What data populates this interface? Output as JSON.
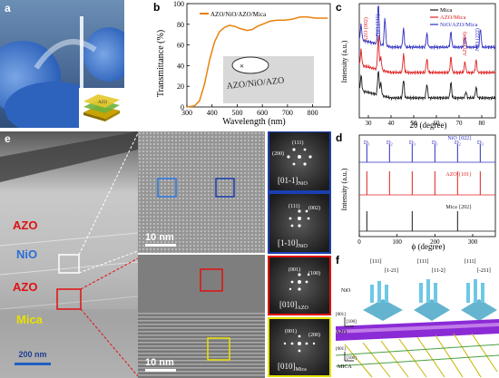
{
  "panels": {
    "a": {
      "label": "a",
      "film_label": "AZO"
    },
    "b": {
      "label": "b",
      "legend": "AZO/NiO/AZO/Mica",
      "xlabel": "Wavelength (nm)",
      "ylabel": "Transmittance (%)",
      "sample_text": "AZO/NiO/AZO"
    },
    "c": {
      "label": "c",
      "xlabel": "2θ (degree)",
      "ylabel": "Intensity (a.u.)",
      "legend": [
        "Mica",
        "AZO/Mica",
        "NiO/AZO/Mica"
      ],
      "annotations": [
        "AZO (002)",
        "NiO (111)",
        "AZO (004)",
        "NiO (222)"
      ]
    },
    "d": {
      "label": "d",
      "xlabel": "ϕ (degree)",
      "ylabel": "Intensity (a.u.)",
      "legend": [
        "NiO {022}",
        "AZO {101}",
        "Mica {202}"
      ],
      "peak_label": "D",
      "peak_subs": [
        "1",
        "2",
        "3",
        "1",
        "2",
        "3"
      ]
    },
    "e": {
      "label": "e",
      "layers": [
        "AZO",
        "NiO",
        "AZO",
        "Mica"
      ],
      "scale_main": "200 nm",
      "scale_hr1": "10 nm",
      "scale_hr2": "10 nm",
      "fft1": {
        "zone": "[01-1]",
        "sub": "NiO",
        "spots": [
          "(111)",
          "(200)"
        ]
      },
      "fft2": {
        "zone": "[1-10]",
        "sub": "NiO",
        "spots": [
          "(111)",
          "(002)"
        ]
      },
      "fft3": {
        "zone": "[010]",
        "sub": "AZO",
        "spots": [
          "(001)",
          "(100)"
        ]
      },
      "fft4": {
        "zone": "[010]",
        "sub": "Mica",
        "spots": [
          "(001)",
          "(200)"
        ]
      }
    },
    "f": {
      "label": "f",
      "top_dirs": [
        "[111]",
        "[1-21]",
        "[111]",
        "[11-2]",
        "[111]",
        "[-211]"
      ],
      "nio_label": "NiO",
      "azo_axes": [
        "[001]",
        "[100]",
        "AZO"
      ],
      "mica_axes": [
        "[001]",
        "[100]",
        "MICA"
      ]
    }
  },
  "chart_data": [
    {
      "type": "line",
      "panel": "b",
      "xlabel": "Wavelength (nm)",
      "ylabel": "Transmittance (%)",
      "xlim": [
        300,
        870
      ],
      "ylim": [
        0,
        100
      ],
      "xticks": [
        300,
        400,
        500,
        600,
        700,
        800
      ],
      "yticks": [
        0,
        20,
        40,
        60,
        80,
        100
      ],
      "series": [
        {
          "name": "AZO/NiO/AZO/Mica",
          "color": "#e8820c",
          "x": [
            300,
            330,
            350,
            370,
            390,
            410,
            430,
            450,
            470,
            490,
            510,
            540,
            560,
            580,
            600,
            630,
            660,
            690,
            720,
            750,
            780,
            810,
            840,
            860
          ],
          "y": [
            0,
            1,
            6,
            22,
            45,
            63,
            73,
            77,
            79,
            78,
            76,
            74,
            75,
            78,
            80,
            83,
            84,
            84,
            85,
            87,
            87,
            86,
            86,
            86
          ]
        }
      ]
    },
    {
      "type": "line",
      "panel": "c",
      "xlabel": "2θ (degree)",
      "ylabel": "Intensity (a.u.)",
      "xlim": [
        26,
        86
      ],
      "xticks": [
        30,
        40,
        50,
        60,
        70,
        80
      ],
      "series": [
        {
          "name": "Mica",
          "color": "#1a1a1a",
          "offset": 0,
          "peaks": [
            [
              26.8,
              0.5
            ],
            [
              34.4,
              0.8
            ],
            [
              35.5,
              0.4
            ],
            [
              45.5,
              0.6
            ],
            [
              55.8,
              0.45
            ],
            [
              66.4,
              0.5
            ],
            [
              73.0,
              0.2
            ],
            [
              77.5,
              0.35
            ]
          ]
        },
        {
          "name": "AZO/Mica",
          "color": "#e02020",
          "offset": 1,
          "peaks": [
            [
              26.8,
              0.5
            ],
            [
              34.4,
              1.1
            ],
            [
              35.5,
              0.4
            ],
            [
              45.5,
              0.6
            ],
            [
              55.8,
              0.45
            ],
            [
              66.4,
              0.5
            ],
            [
              72.6,
              0.35
            ],
            [
              77.5,
              0.4
            ]
          ]
        },
        {
          "name": "NiO/AZO/Mica",
          "color": "#3030c0",
          "offset": 2,
          "peaks": [
            [
              26.8,
              0.5
            ],
            [
              34.4,
              1.3
            ],
            [
              37.3,
              0.9
            ],
            [
              45.5,
              0.6
            ],
            [
              55.8,
              0.45
            ],
            [
              66.4,
              0.5
            ],
            [
              72.6,
              0.35
            ],
            [
              79.4,
              0.6
            ]
          ]
        }
      ]
    },
    {
      "type": "line",
      "panel": "d",
      "xlabel": "ϕ (degree)",
      "ylabel": "Intensity (a.u.)",
      "xlim": [
        0,
        360
      ],
      "xticks": [
        0,
        100,
        200,
        300
      ],
      "series": [
        {
          "name": "NiO {022}",
          "color": "#3030c0",
          "offset": 2,
          "peaks": [
            20,
            80,
            140,
            200,
            260,
            320
          ]
        },
        {
          "name": "AZO {101}",
          "color": "#e02020",
          "offset": 1,
          "peaks": [
            20,
            80,
            140,
            200,
            260,
            320
          ]
        },
        {
          "name": "Mica {202}",
          "color": "#1a1a1a",
          "offset": 0,
          "peaks": [
            20,
            140,
            260
          ]
        }
      ]
    }
  ]
}
